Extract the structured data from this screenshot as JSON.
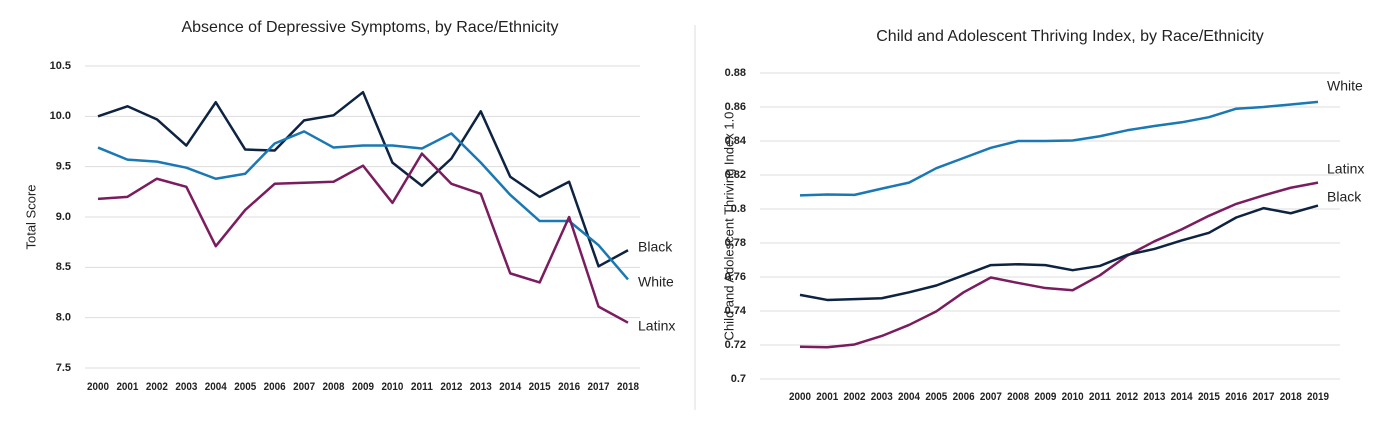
{
  "chart_data": [
    {
      "type": "line",
      "title": "Absence of Depressive Symptoms, by Race/Ethnicity",
      "y_label": "Total Score",
      "x": [
        2000,
        2001,
        2002,
        2003,
        2004,
        2005,
        2006,
        2007,
        2008,
        2009,
        2010,
        2011,
        2012,
        2013,
        2014,
        2015,
        2016,
        2017,
        2018
      ],
      "ylim": [
        7.5,
        10.5
      ],
      "yticks": [
        7.5,
        {
          "value": 8,
          "label": "8.0"
        },
        8.5,
        {
          "value": 9,
          "label": "9.0"
        },
        9.5,
        {
          "value": 10,
          "label": "10.0"
        },
        10.5
      ],
      "grid": true,
      "series": [
        {
          "name": "Black",
          "color": "#0d2341",
          "values": [
            10.0,
            10.1,
            9.97,
            9.71,
            10.14,
            9.67,
            9.66,
            9.96,
            10.01,
            10.24,
            9.54,
            9.31,
            9.58,
            10.05,
            9.4,
            9.2,
            9.35,
            8.51,
            8.67
          ]
        },
        {
          "name": "White",
          "color": "#1a78b4",
          "values": [
            9.69,
            9.57,
            9.55,
            9.49,
            9.38,
            9.43,
            9.73,
            9.85,
            9.69,
            9.71,
            9.71,
            9.68,
            9.83,
            9.54,
            9.22,
            8.96,
            8.96,
            8.72,
            8.38
          ]
        },
        {
          "name": "Latinx",
          "color": "#7a1c5e",
          "values": [
            9.18,
            9.2,
            9.38,
            9.3,
            8.71,
            9.07,
            9.33,
            9.34,
            9.35,
            9.51,
            9.14,
            9.63,
            9.33,
            9.23,
            8.44,
            8.35,
            9.0,
            8.11,
            7.95
          ]
        }
      ]
    },
    {
      "type": "line",
      "title": "Child and Adolescent Thriving Index, by Race/Ethnicity",
      "y_label": "Child and Adolescent Thriving Index 1.0",
      "x": [
        2000,
        2001,
        2002,
        2003,
        2004,
        2005,
        2006,
        2007,
        2008,
        2009,
        2010,
        2011,
        2012,
        2013,
        2014,
        2015,
        2016,
        2017,
        2018,
        2019
      ],
      "ylim": [
        0.7,
        0.88
      ],
      "yticks": [
        0.7,
        0.72,
        0.74,
        0.76,
        0.78,
        0.8,
        0.82,
        0.84,
        0.86,
        0.88
      ],
      "grid": true,
      "series": [
        {
          "name": "White",
          "color": "#1a78b4",
          "values": [
            0.808,
            0.8085,
            0.8083,
            0.812,
            0.8155,
            0.824,
            0.83,
            0.836,
            0.84,
            0.84,
            0.8403,
            0.8428,
            0.8463,
            0.8488,
            0.851,
            0.854,
            0.859,
            0.86,
            0.8615,
            0.863
          ]
        },
        {
          "name": "Latinx",
          "color": "#7a1c5e",
          "values": [
            0.719,
            0.7187,
            0.7203,
            0.7253,
            0.7318,
            0.7398,
            0.751,
            0.7597,
            0.7565,
            0.7535,
            0.7522,
            0.761,
            0.7725,
            0.781,
            0.788,
            0.796,
            0.803,
            0.808,
            0.8125,
            0.8155
          ]
        },
        {
          "name": "Black",
          "color": "#0d2341",
          "values": [
            0.7495,
            0.7465,
            0.747,
            0.7475,
            0.751,
            0.755,
            0.761,
            0.767,
            0.7675,
            0.767,
            0.764,
            0.7665,
            0.773,
            0.7765,
            0.7815,
            0.786,
            0.795,
            0.8005,
            0.7975,
            0.802
          ]
        }
      ]
    }
  ]
}
